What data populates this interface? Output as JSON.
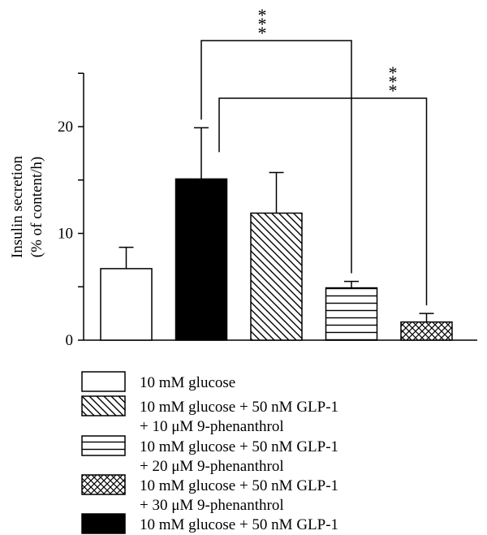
{
  "chart_data": {
    "type": "bar",
    "ylabel_line1": "Insulin secretion",
    "ylabel_line2": "(% of content/h)",
    "ylim": [
      0,
      25
    ],
    "yticks": [
      0,
      10,
      20
    ],
    "grid": false,
    "legend_position": "bottom",
    "bars": [
      {
        "name": "10 mM glucose",
        "value": 6.7,
        "error": 2.0,
        "pattern": "empty"
      },
      {
        "name": "10 mM glucose + 50 nM GLP-1",
        "value": 15.1,
        "error": 4.8,
        "pattern": "solid"
      },
      {
        "name": "10 mM glucose + 50 nM GLP-1 + 10 μM 9-phenanthrol",
        "value": 11.9,
        "error": 3.8,
        "pattern": "diagonal"
      },
      {
        "name": "10 mM glucose + 50 nM GLP-1 + 20 μM 9-phenanthrol",
        "value": 4.9,
        "error": 0.6,
        "pattern": "horizontal"
      },
      {
        "name": "10 mM glucose + 50 nM GLP-1 + 30 μM 9-phenanthrol",
        "value": 1.7,
        "error": 0.8,
        "pattern": "crosshatch"
      }
    ],
    "significance": [
      {
        "from": 1,
        "to": 3,
        "label": "***"
      },
      {
        "from": 1,
        "to": 4,
        "label": "***"
      }
    ],
    "legend": [
      {
        "pattern": "empty",
        "line1": "10 mM glucose",
        "line2": ""
      },
      {
        "pattern": "diagonal",
        "line1": "10 mM glucose + 50 nM GLP-1",
        "line2": "+ 10 μM 9-phenanthrol"
      },
      {
        "pattern": "horizontal",
        "line1": "10 mM glucose + 50 nM GLP-1",
        "line2": "+ 20 μM 9-phenanthrol"
      },
      {
        "pattern": "crosshatch",
        "line1": "10 mM glucose + 50 nM GLP-1",
        "line2": "+ 30 μM 9-phenanthrol"
      },
      {
        "pattern": "solid",
        "line1": "10 mM glucose + 50 nM GLP-1",
        "line2": ""
      }
    ],
    "colors": {
      "ink": "#000000",
      "background": "#ffffff"
    }
  }
}
